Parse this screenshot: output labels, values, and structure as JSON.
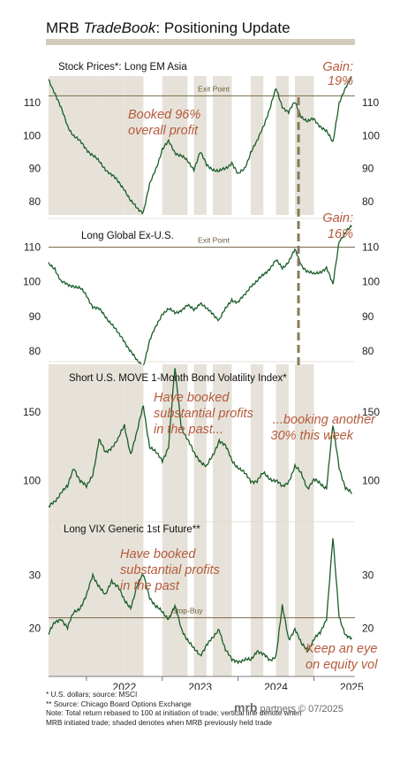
{
  "title": {
    "normal": "MRB ",
    "italic": "TradeBook",
    "rest": ": Positioning Update"
  },
  "chart_data": [
    {
      "type": "line",
      "title": "Stock Prices*: Long EM Asia",
      "ylim": [
        76,
        118
      ],
      "yticks": [
        80,
        90,
        100,
        110
      ],
      "reference_line": {
        "label": "Exit Point",
        "value": 112
      },
      "annotations": [
        "Booked 96%",
        "overall profit",
        "Gain:",
        "19%"
      ],
      "series": [
        {
          "color": "#1a5e2a",
          "x": [
            "2021-07",
            "2021-08",
            "2021-09",
            "2021-10",
            "2021-11",
            "2021-12",
            "2022-01",
            "2022-02",
            "2022-03",
            "2022-04",
            "2022-05",
            "2022-06",
            "2022-07",
            "2022-08",
            "2022-09",
            "2022-10",
            "2022-11",
            "2022-12",
            "2023-01",
            "2023-02",
            "2023-03",
            "2023-04",
            "2023-05",
            "2023-06",
            "2023-07",
            "2023-08",
            "2023-09",
            "2023-10",
            "2023-11",
            "2023-12",
            "2024-01",
            "2024-02",
            "2024-03",
            "2024-04",
            "2024-05",
            "2024-06",
            "2024-07",
            "2024-08",
            "2024-09",
            "2024-10",
            "2024-11",
            "2024-12",
            "2025-01",
            "2025-02",
            "2025-03",
            "2025-04",
            "2025-05",
            "2025-06",
            "2025-07"
          ],
          "values": [
            117,
            113,
            108,
            103,
            100,
            98,
            96,
            94,
            92,
            90,
            88,
            86,
            84,
            80,
            78,
            77,
            85,
            90,
            96,
            98,
            95,
            94,
            92,
            90,
            95,
            91,
            90,
            89,
            90,
            92,
            88,
            90,
            95,
            98,
            103,
            108,
            114,
            109,
            107,
            110,
            106,
            104,
            105,
            103,
            101,
            98,
            110,
            114,
            118
          ]
        }
      ]
    },
    {
      "type": "line",
      "title": "Long Global Ex-U.S.",
      "ylim": [
        78,
        117
      ],
      "yticks": [
        80,
        90,
        100,
        110
      ],
      "reference_line": {
        "label": "Exit Point",
        "value": 110
      },
      "annotations": [
        "Gain:",
        "16%"
      ],
      "series": [
        {
          "color": "#1a5e2a",
          "x": [
            "2021-07",
            "2021-08",
            "2021-09",
            "2021-10",
            "2021-11",
            "2021-12",
            "2022-01",
            "2022-02",
            "2022-03",
            "2022-04",
            "2022-05",
            "2022-06",
            "2022-07",
            "2022-08",
            "2022-09",
            "2022-10",
            "2022-11",
            "2022-12",
            "2023-01",
            "2023-02",
            "2023-03",
            "2023-04",
            "2023-05",
            "2023-06",
            "2023-07",
            "2023-08",
            "2023-09",
            "2023-10",
            "2023-11",
            "2023-12",
            "2024-01",
            "2024-02",
            "2024-03",
            "2024-04",
            "2024-05",
            "2024-06",
            "2024-07",
            "2024-08",
            "2024-09",
            "2024-10",
            "2024-11",
            "2024-12",
            "2025-01",
            "2025-02",
            "2025-03",
            "2025-04",
            "2025-05",
            "2025-06",
            "2025-07"
          ],
          "values": [
            105,
            104,
            100,
            99,
            99,
            98,
            96,
            93,
            92,
            90,
            88,
            85,
            83,
            80,
            77,
            76,
            83,
            87,
            91,
            92,
            91,
            92,
            93,
            92,
            94,
            92,
            91,
            89,
            92,
            95,
            94,
            96,
            99,
            100,
            102,
            104,
            106,
            104,
            106,
            109,
            105,
            103,
            102,
            103,
            104,
            99,
            112,
            114,
            116
          ]
        }
      ]
    },
    {
      "type": "line",
      "title": "Short U.S. MOVE 1-Month Bond Volatility Index*",
      "ylim": [
        70,
        185
      ],
      "yticks": [
        100,
        150
      ],
      "annotations": [
        "Have booked",
        "substantial profits",
        "in the past...",
        "...booking another",
        "30% this week"
      ],
      "series": [
        {
          "color": "#1a5e2a",
          "x": [
            "2021-07",
            "2021-08",
            "2021-09",
            "2021-10",
            "2021-11",
            "2021-12",
            "2022-01",
            "2022-02",
            "2022-03",
            "2022-04",
            "2022-05",
            "2022-06",
            "2022-07",
            "2022-08",
            "2022-09",
            "2022-10",
            "2022-11",
            "2022-12",
            "2023-01",
            "2023-02",
            "2023-03",
            "2023-04",
            "2023-05",
            "2023-06",
            "2023-07",
            "2023-08",
            "2023-09",
            "2023-10",
            "2023-11",
            "2023-12",
            "2024-01",
            "2024-02",
            "2024-03",
            "2024-04",
            "2024-05",
            "2024-06",
            "2024-07",
            "2024-08",
            "2024-09",
            "2024-10",
            "2024-11",
            "2024-12",
            "2025-01",
            "2025-02",
            "2025-03",
            "2025-04",
            "2025-05",
            "2025-06",
            "2025-07"
          ],
          "values": [
            80,
            85,
            92,
            95,
            110,
            100,
            95,
            105,
            130,
            120,
            125,
            130,
            140,
            120,
            135,
            155,
            125,
            120,
            115,
            125,
            182,
            140,
            130,
            120,
            115,
            110,
            118,
            130,
            125,
            115,
            110,
            105,
            100,
            100,
            105,
            102,
            100,
            95,
            100,
            110,
            105,
            95,
            100,
            98,
            95,
            140,
            110,
            95,
            90
          ]
        }
      ]
    },
    {
      "type": "line",
      "title": "Long VIX Generic 1st Future**",
      "ylim": [
        11,
        40
      ],
      "yticks": [
        20,
        30
      ],
      "reference_line": {
        "label": "Stop-Buy",
        "value": 22
      },
      "annotations": [
        "Have booked",
        "substantial profits",
        "in the past",
        "Keep an eye",
        "on equity vol"
      ],
      "series": [
        {
          "color": "#1a5e2a",
          "x": [
            "2021-07",
            "2021-08",
            "2021-09",
            "2021-10",
            "2021-11",
            "2021-12",
            "2022-01",
            "2022-02",
            "2022-03",
            "2022-04",
            "2022-05",
            "2022-06",
            "2022-07",
            "2022-08",
            "2022-09",
            "2022-10",
            "2022-11",
            "2022-12",
            "2023-01",
            "2023-02",
            "2023-03",
            "2023-04",
            "2023-05",
            "2023-06",
            "2023-07",
            "2023-08",
            "2023-09",
            "2023-10",
            "2023-11",
            "2023-12",
            "2024-01",
            "2024-02",
            "2024-03",
            "2024-04",
            "2024-05",
            "2024-06",
            "2024-07",
            "2024-08",
            "2024-09",
            "2024-10",
            "2024-11",
            "2024-12",
            "2025-01",
            "2025-02",
            "2025-03",
            "2025-04",
            "2025-05",
            "2025-06",
            "2025-07"
          ],
          "values": [
            19,
            21,
            22,
            20,
            23,
            24,
            26,
            30,
            28,
            26,
            29,
            28,
            25,
            24,
            28,
            30,
            26,
            24,
            23,
            22,
            24,
            20,
            18,
            16,
            15,
            17,
            18,
            20,
            16,
            14,
            14,
            14,
            14,
            16,
            15,
            14,
            15,
            24,
            18,
            20,
            17,
            16,
            18,
            19,
            22,
            37,
            22,
            19,
            18
          ]
        }
      ]
    }
  ],
  "x_axis": {
    "labels": [
      "2022",
      "2023",
      "2024",
      "2025"
    ]
  },
  "shading_periods": [
    [
      "2021-07",
      "2021-09"
    ],
    [
      "2021-10",
      "2021-12"
    ],
    [
      "2022-01",
      "2022-02"
    ],
    [
      "2022-03",
      "2022-06"
    ],
    [
      "2022-07",
      "2022-09"
    ],
    [
      "2023-01",
      "2023-04"
    ],
    [
      "2023-06",
      "2023-07"
    ],
    [
      "2023-09",
      "2023-11"
    ],
    [
      "2024-03",
      "2024-04"
    ],
    [
      "2024-07",
      "2024-08"
    ],
    [
      "2024-10",
      "2024-12"
    ]
  ],
  "footnotes": [
    "* U.S. dollars; source: MSCI",
    "** Source: Chicago Board Options Exchange",
    "Note: Total return rebased to 100 at initiation of trade; vertical line denote when MRB initiated trade; shaded denotes when MRB previously held trade"
  ],
  "brand": {
    "logo": "mrb",
    "name": " partners",
    "date": " © 07/2025"
  },
  "colors": {
    "line": "#1a5e2a",
    "shade": "#e6e2d9",
    "annotation": "#b55a3c",
    "dashed": "#8a7a58",
    "rule": "#d3ccbd"
  }
}
